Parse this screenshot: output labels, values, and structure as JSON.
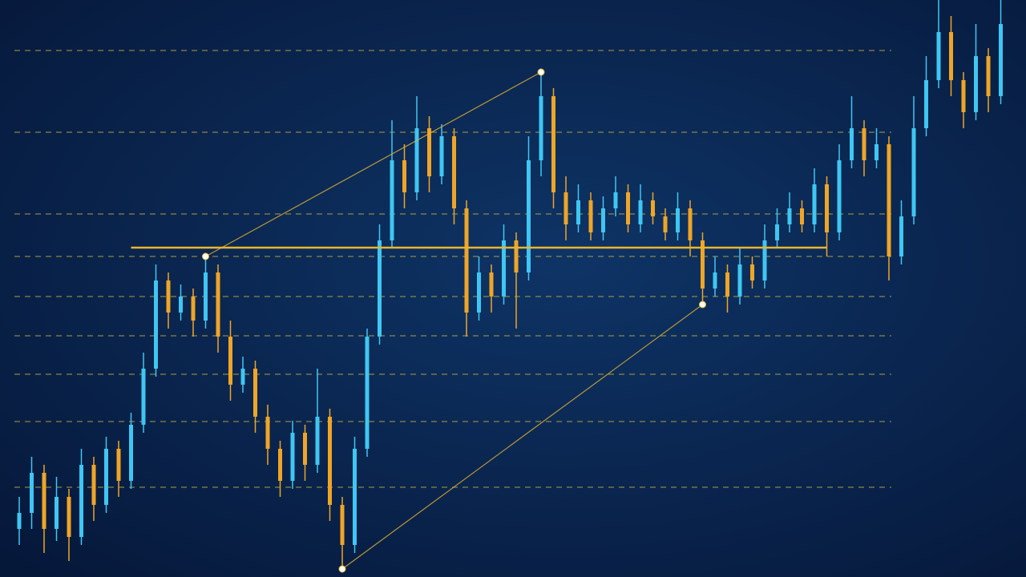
{
  "chart_data": {
    "type": "candlestick",
    "up_color": "#3fc6f2",
    "down_color": "#efa526",
    "level_color": "#b9a640",
    "line_color": "#e9b52e",
    "ylim": [
      0,
      720
    ],
    "open": [
      60,
      80,
      130,
      60,
      100,
      50,
      140,
      90,
      160,
      120,
      190,
      260,
      370,
      330,
      350,
      320,
      380,
      300,
      240,
      260,
      200,
      160,
      120,
      180,
      140,
      200,
      90,
      40,
      160,
      300,
      420,
      520,
      480,
      560,
      500,
      550,
      460,
      330,
      380,
      350,
      420,
      380,
      520,
      600,
      480,
      440,
      470,
      430,
      460,
      480,
      440,
      470,
      450,
      430,
      460,
      420,
      360,
      380,
      350,
      390,
      370,
      420,
      440,
      460,
      440,
      490,
      430,
      520,
      560,
      520,
      540,
      400,
      450,
      560,
      620,
      680,
      620,
      580,
      650,
      600
    ],
    "close": [
      80,
      130,
      60,
      100,
      50,
      140,
      90,
      160,
      120,
      190,
      260,
      370,
      330,
      350,
      320,
      380,
      300,
      240,
      260,
      200,
      160,
      120,
      180,
      140,
      200,
      90,
      40,
      160,
      300,
      420,
      520,
      480,
      560,
      500,
      550,
      460,
      330,
      380,
      350,
      420,
      380,
      520,
      600,
      480,
      440,
      470,
      430,
      460,
      480,
      440,
      470,
      450,
      430,
      460,
      420,
      360,
      380,
      350,
      390,
      370,
      420,
      440,
      460,
      440,
      490,
      430,
      520,
      560,
      520,
      540,
      400,
      450,
      560,
      620,
      680,
      620,
      580,
      650,
      600,
      690
    ],
    "high": [
      100,
      150,
      140,
      125,
      110,
      160,
      150,
      175,
      170,
      205,
      280,
      390,
      380,
      365,
      360,
      400,
      390,
      320,
      275,
      270,
      215,
      170,
      195,
      190,
      260,
      210,
      100,
      175,
      310,
      440,
      570,
      540,
      600,
      575,
      565,
      560,
      470,
      400,
      390,
      440,
      430,
      550,
      630,
      610,
      500,
      490,
      480,
      475,
      500,
      490,
      490,
      480,
      460,
      480,
      470,
      430,
      400,
      390,
      410,
      400,
      440,
      460,
      480,
      470,
      510,
      500,
      540,
      600,
      570,
      560,
      550,
      470,
      600,
      650,
      720,
      700,
      630,
      690,
      660,
      720
    ],
    "low": [
      40,
      60,
      30,
      45,
      20,
      40,
      70,
      80,
      100,
      110,
      180,
      250,
      310,
      320,
      300,
      310,
      280,
      220,
      230,
      180,
      140,
      100,
      110,
      120,
      130,
      70,
      10,
      30,
      150,
      290,
      410,
      460,
      470,
      480,
      490,
      440,
      300,
      320,
      330,
      340,
      310,
      370,
      500,
      460,
      420,
      430,
      420,
      420,
      450,
      430,
      430,
      440,
      420,
      420,
      400,
      340,
      350,
      330,
      340,
      360,
      360,
      410,
      430,
      430,
      430,
      400,
      420,
      510,
      500,
      510,
      370,
      390,
      440,
      550,
      610,
      600,
      560,
      570,
      580,
      590
    ],
    "levels": [
      657,
      555,
      453,
      400,
      350,
      301,
      253,
      194,
      112
    ],
    "resistance": {
      "value": 411,
      "from": 9,
      "to": 65
    },
    "trendlines": [
      {
        "from": [
          15,
          400
        ],
        "to": [
          42,
          630
        ]
      },
      {
        "from": [
          26,
          10
        ],
        "to": [
          55,
          340
        ]
      }
    ]
  }
}
